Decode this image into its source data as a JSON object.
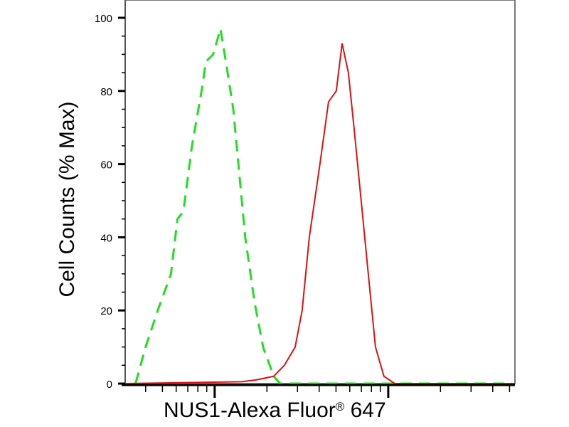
{
  "chart_data": {
    "type": "line",
    "title": "",
    "xlabel_main": "NUS1-Alexa Fluor",
    "xlabel_mark": "®",
    "xlabel_tail": " 647",
    "ylabel": "Cell Counts (% Max)",
    "xscale": "log",
    "xlim": [
      3.05,
      537
    ],
    "ylim": [
      0,
      100
    ],
    "yticks": [
      0,
      20,
      40,
      60,
      80,
      100
    ],
    "ytick_labels": [
      "0",
      "20",
      "40",
      "60",
      "80",
      "100"
    ],
    "x_major_ticks": [
      10,
      100
    ],
    "grid": false,
    "legend": "none",
    "series": [
      {
        "color": "#22dd22",
        "style": "dashed",
        "x": [
          3.5,
          4.0,
          4.7,
          5.6,
          6.1,
          6.6,
          7.4,
          8.4,
          8.9,
          9.8,
          10.8,
          11.6,
          12.8,
          13.7,
          15.0,
          17.0,
          19.0,
          21.9,
          23.8,
          516
        ],
        "y": [
          0,
          10,
          20,
          30,
          45,
          47,
          65,
          80,
          88,
          90,
          97,
          88,
          75,
          60,
          40,
          22,
          10,
          2,
          0,
          0
        ]
      },
      {
        "color": "#dd1111",
        "style": "solid",
        "x": [
          3.05,
          14.3,
          17.3,
          21.9,
          25.2,
          29.1,
          31.9,
          35.1,
          40.4,
          45.3,
          50.2,
          54.2,
          58.9,
          63.5,
          69.8,
          76.7,
          84.4,
          94.4,
          109,
          537
        ],
        "y": [
          0,
          0.5,
          1,
          2,
          5,
          10,
          20,
          40,
          60,
          77,
          80,
          93,
          85,
          70,
          50,
          30,
          10,
          2,
          0,
          0
        ]
      }
    ]
  }
}
